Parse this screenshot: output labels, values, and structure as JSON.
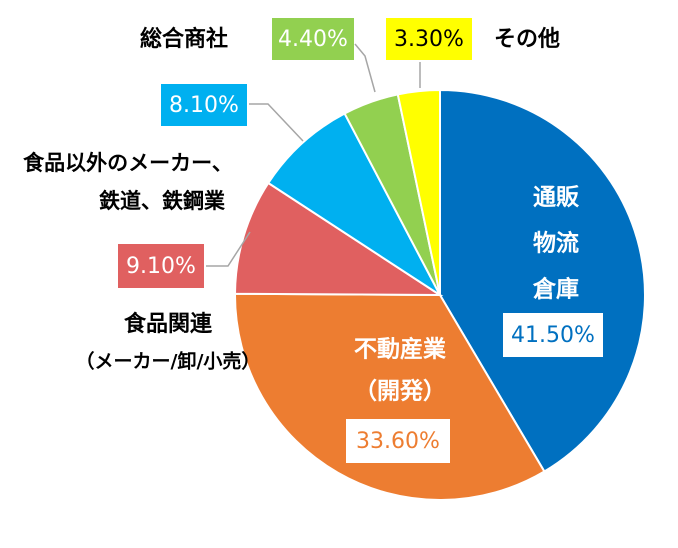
{
  "chart_data": {
    "type": "pie",
    "title": "",
    "legend": "none",
    "slices": [
      {
        "label": [
          "通販",
          "物流",
          "倉庫"
        ],
        "value_label": "41.50%",
        "value": 41.5,
        "color": "#0070C0",
        "label_color": "#ffffff",
        "box_fill": "#ffffff",
        "box_text": "#0070C0"
      },
      {
        "label": [
          "不動産業",
          "（開発）"
        ],
        "value_label": "33.60%",
        "value": 33.6,
        "color": "#ED7D31",
        "label_color": "#ffffff",
        "box_fill": "#ffffff",
        "box_text": "#ED7D31"
      },
      {
        "label": [
          "食品関連",
          "（メーカー/卸/小売）"
        ],
        "value_label": "9.10%",
        "value": 9.1,
        "color": "#E06060",
        "label_color": "#000000",
        "box_fill": "#E06060",
        "box_text": "#ffffff"
      },
      {
        "label": [
          "食品以外のメーカー、",
          "鉄道、鉄鋼業"
        ],
        "value_label": "8.10%",
        "value": 8.1,
        "color": "#00B0F0",
        "label_color": "#000000",
        "box_fill": "#00B0F0",
        "box_text": "#ffffff"
      },
      {
        "label": [
          "総合商社"
        ],
        "value_label": "4.40%",
        "value": 4.4,
        "color": "#92D050",
        "label_color": "#000000",
        "box_fill": "#92D050",
        "box_text": "#ffffff"
      },
      {
        "label": [
          "その他"
        ],
        "value_label": "3.30%",
        "value": 3.3,
        "color": "#FFFF00",
        "label_color": "#000000",
        "box_fill": "#FFFF00",
        "box_text": "#000000"
      }
    ]
  }
}
